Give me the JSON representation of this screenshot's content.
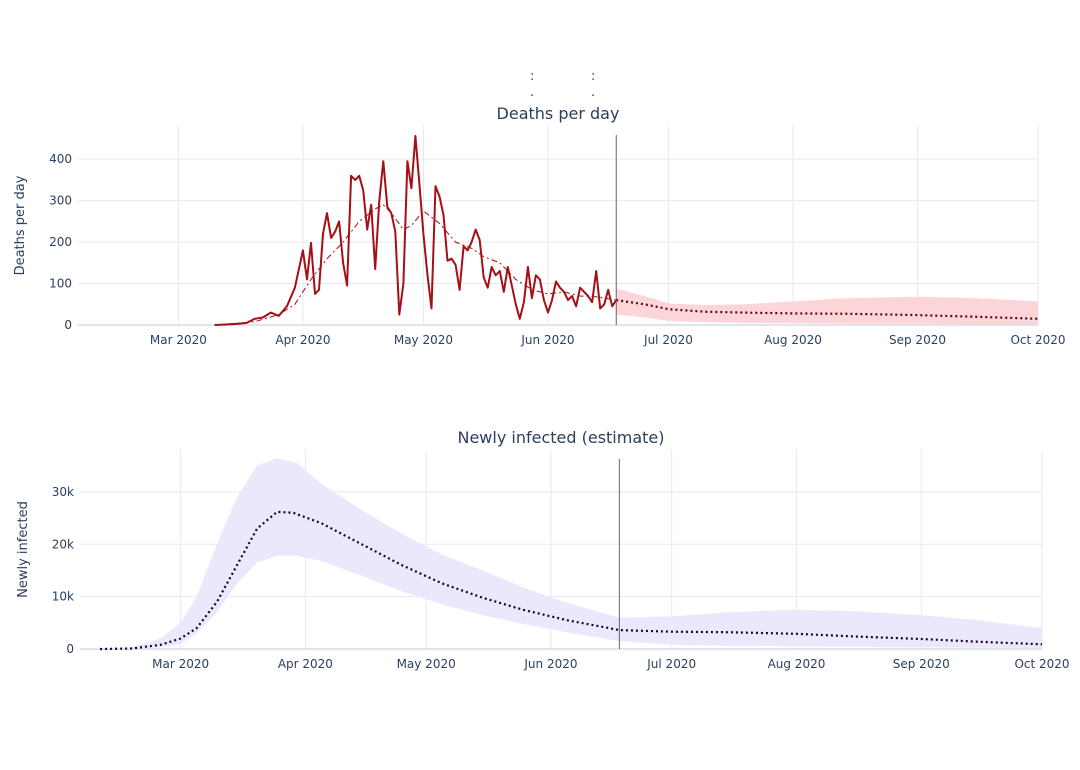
{
  "chart_data": [
    {
      "type": "line",
      "title": "Deaths per day",
      "ylabel": "Deaths per day",
      "xlabel": "",
      "ylim": [
        0,
        480
      ],
      "xlim": [
        "2020-02-05",
        "2020-10-01"
      ],
      "x_ticks": [
        "2020-03-01",
        "2020-04-01",
        "2020-05-01",
        "2020-06-01",
        "2020-07-01",
        "2020-08-01",
        "2020-09-01",
        "2020-10-01"
      ],
      "x_tick_labels": [
        "Mar 2020",
        "Apr 2020",
        "May 2020",
        "Jun 2020",
        "Jul 2020",
        "Aug 2020",
        "Sep 2020",
        "Oct 2020"
      ],
      "y_ticks": [
        0,
        100,
        200,
        300,
        400
      ],
      "y_tick_labels": [
        "0",
        "100",
        "200",
        "300",
        "400"
      ],
      "grid": true,
      "vline_date": "2020-06-18",
      "series": [
        {
          "style": "solid",
          "color": "#a50f15",
          "points": [
            [
              "2020-03-10",
              0
            ],
            [
              "2020-03-12",
              1
            ],
            [
              "2020-03-14",
              2
            ],
            [
              "2020-03-16",
              3
            ],
            [
              "2020-03-18",
              5
            ],
            [
              "2020-03-20",
              15
            ],
            [
              "2020-03-22",
              18
            ],
            [
              "2020-03-24",
              30
            ],
            [
              "2020-03-26",
              22
            ],
            [
              "2020-03-28",
              45
            ],
            [
              "2020-03-30",
              90
            ],
            [
              "2020-04-01",
              180
            ],
            [
              "2020-04-02",
              110
            ],
            [
              "2020-04-03",
              198
            ],
            [
              "2020-04-04",
              75
            ],
            [
              "2020-04-05",
              85
            ],
            [
              "2020-04-06",
              220
            ],
            [
              "2020-04-07",
              270
            ],
            [
              "2020-04-08",
              210
            ],
            [
              "2020-04-09",
              225
            ],
            [
              "2020-04-10",
              250
            ],
            [
              "2020-04-11",
              150
            ],
            [
              "2020-04-12",
              95
            ],
            [
              "2020-04-13",
              360
            ],
            [
              "2020-04-14",
              350
            ],
            [
              "2020-04-15",
              360
            ],
            [
              "2020-04-16",
              325
            ],
            [
              "2020-04-17",
              230
            ],
            [
              "2020-04-18",
              290
            ],
            [
              "2020-04-19",
              135
            ],
            [
              "2020-04-20",
              300
            ],
            [
              "2020-04-21",
              395
            ],
            [
              "2020-04-22",
              285
            ],
            [
              "2020-04-23",
              270
            ],
            [
              "2020-04-24",
              225
            ],
            [
              "2020-04-25",
              25
            ],
            [
              "2020-04-26",
              100
            ],
            [
              "2020-04-27",
              395
            ],
            [
              "2020-04-28",
              330
            ],
            [
              "2020-04-29",
              456
            ],
            [
              "2020-04-30",
              340
            ],
            [
              "2020-05-01",
              220
            ],
            [
              "2020-05-02",
              120
            ],
            [
              "2020-05-03",
              40
            ],
            [
              "2020-05-04",
              335
            ],
            [
              "2020-05-05",
              310
            ],
            [
              "2020-05-06",
              265
            ],
            [
              "2020-05-07",
              155
            ],
            [
              "2020-05-08",
              160
            ],
            [
              "2020-05-09",
              145
            ],
            [
              "2020-05-10",
              85
            ],
            [
              "2020-05-11",
              190
            ],
            [
              "2020-05-12",
              180
            ],
            [
              "2020-05-13",
              200
            ],
            [
              "2020-05-14",
              230
            ],
            [
              "2020-05-15",
              205
            ],
            [
              "2020-05-16",
              115
            ],
            [
              "2020-05-17",
              90
            ],
            [
              "2020-05-18",
              140
            ],
            [
              "2020-05-19",
              120
            ],
            [
              "2020-05-20",
              130
            ],
            [
              "2020-05-21",
              80
            ],
            [
              "2020-05-22",
              140
            ],
            [
              "2020-05-23",
              95
            ],
            [
              "2020-05-24",
              50
            ],
            [
              "2020-05-25",
              15
            ],
            [
              "2020-05-26",
              55
            ],
            [
              "2020-05-27",
              140
            ],
            [
              "2020-05-28",
              65
            ],
            [
              "2020-05-29",
              120
            ],
            [
              "2020-05-30",
              110
            ],
            [
              "2020-05-31",
              60
            ],
            [
              "2020-06-01",
              30
            ],
            [
              "2020-06-02",
              60
            ],
            [
              "2020-06-03",
              105
            ],
            [
              "2020-06-04",
              90
            ],
            [
              "2020-06-05",
              80
            ],
            [
              "2020-06-06",
              60
            ],
            [
              "2020-06-07",
              70
            ],
            [
              "2020-06-08",
              45
            ],
            [
              "2020-06-09",
              90
            ],
            [
              "2020-06-10",
              80
            ],
            [
              "2020-06-11",
              70
            ],
            [
              "2020-06-12",
              55
            ],
            [
              "2020-06-13",
              130
            ],
            [
              "2020-06-14",
              40
            ],
            [
              "2020-06-15",
              50
            ],
            [
              "2020-06-16",
              85
            ],
            [
              "2020-06-17",
              45
            ],
            [
              "2020-06-18",
              60
            ]
          ]
        },
        {
          "style": "dashdot",
          "color": "#a50f15",
          "points": [
            [
              "2020-03-10",
              0
            ],
            [
              "2020-03-20",
              8
            ],
            [
              "2020-03-26",
              25
            ],
            [
              "2020-03-30",
              50
            ],
            [
              "2020-04-03",
              110
            ],
            [
              "2020-04-07",
              160
            ],
            [
              "2020-04-11",
              200
            ],
            [
              "2020-04-15",
              250
            ],
            [
              "2020-04-19",
              280
            ],
            [
              "2020-04-21",
              290
            ],
            [
              "2020-04-23",
              270
            ],
            [
              "2020-04-26",
              230
            ],
            [
              "2020-04-28",
              240
            ],
            [
              "2020-05-01",
              275
            ],
            [
              "2020-05-05",
              245
            ],
            [
              "2020-05-09",
              200
            ],
            [
              "2020-05-13",
              185
            ],
            [
              "2020-05-16",
              165
            ],
            [
              "2020-05-20",
              150
            ],
            [
              "2020-05-24",
              110
            ],
            [
              "2020-05-28",
              85
            ],
            [
              "2020-06-01",
              75
            ],
            [
              "2020-06-05",
              80
            ],
            [
              "2020-06-09",
              70
            ],
            [
              "2020-06-13",
              68
            ],
            [
              "2020-06-18",
              60
            ]
          ]
        },
        {
          "style": "dotted",
          "color": "#67000d",
          "points": [
            [
              "2020-06-18",
              60
            ],
            [
              "2020-06-25",
              50
            ],
            [
              "2020-07-01",
              38
            ],
            [
              "2020-07-10",
              32
            ],
            [
              "2020-07-20",
              30
            ],
            [
              "2020-08-01",
              28
            ],
            [
              "2020-08-15",
              27
            ],
            [
              "2020-09-01",
              24
            ],
            [
              "2020-09-15",
              20
            ],
            [
              "2020-10-01",
              15
            ]
          ]
        }
      ],
      "band": {
        "color": "#fcd5d9",
        "upper": [
          [
            "2020-06-18",
            88
          ],
          [
            "2020-06-25",
            70
          ],
          [
            "2020-07-01",
            52
          ],
          [
            "2020-07-10",
            48
          ],
          [
            "2020-07-20",
            50
          ],
          [
            "2020-08-01",
            57
          ],
          [
            "2020-08-15",
            65
          ],
          [
            "2020-09-01",
            68
          ],
          [
            "2020-09-15",
            65
          ],
          [
            "2020-10-01",
            57
          ]
        ],
        "lower": [
          [
            "2020-06-18",
            25
          ],
          [
            "2020-06-25",
            18
          ],
          [
            "2020-07-01",
            10
          ],
          [
            "2020-07-10",
            7
          ],
          [
            "2020-07-20",
            5
          ],
          [
            "2020-08-01",
            4
          ],
          [
            "2020-08-15",
            3
          ],
          [
            "2020-09-01",
            3
          ],
          [
            "2020-09-15",
            2
          ],
          [
            "2020-10-01",
            2
          ]
        ]
      }
    },
    {
      "type": "line",
      "title": "Newly infected (estimate)",
      "ylabel": "Newly infected",
      "xlabel": "",
      "ylim": [
        0,
        38000
      ],
      "xlim": [
        "2020-02-05",
        "2020-10-01"
      ],
      "x_ticks": [
        "2020-03-01",
        "2020-04-01",
        "2020-05-01",
        "2020-06-01",
        "2020-07-01",
        "2020-08-01",
        "2020-09-01",
        "2020-10-01"
      ],
      "x_tick_labels": [
        "Mar 2020",
        "Apr 2020",
        "May 2020",
        "Jun 2020",
        "Jul 2020",
        "Aug 2020",
        "Sep 2020",
        "Oct 2020"
      ],
      "y_ticks": [
        0,
        10000,
        20000,
        30000
      ],
      "y_tick_labels": [
        "0",
        "10k",
        "20k",
        "30k"
      ],
      "grid": true,
      "vline_date": "2020-06-18",
      "series": [
        {
          "style": "dotted",
          "color": "#14002a",
          "points": [
            [
              "2020-02-10",
              0
            ],
            [
              "2020-02-18",
              100
            ],
            [
              "2020-02-25",
              800
            ],
            [
              "2020-03-01",
              2000
            ],
            [
              "2020-03-05",
              4000
            ],
            [
              "2020-03-10",
              9000
            ],
            [
              "2020-03-15",
              16000
            ],
            [
              "2020-03-20",
              23000
            ],
            [
              "2020-03-25",
              26200
            ],
            [
              "2020-03-29",
              26000
            ],
            [
              "2020-04-05",
              24000
            ],
            [
              "2020-04-15",
              20000
            ],
            [
              "2020-04-25",
              16000
            ],
            [
              "2020-05-05",
              12500
            ],
            [
              "2020-05-15",
              9800
            ],
            [
              "2020-05-25",
              7500
            ],
            [
              "2020-06-05",
              5500
            ],
            [
              "2020-06-18",
              3600
            ],
            [
              "2020-07-01",
              3300
            ],
            [
              "2020-07-15",
              3200
            ],
            [
              "2020-08-01",
              2900
            ],
            [
              "2020-08-15",
              2400
            ],
            [
              "2020-09-01",
              1900
            ],
            [
              "2020-09-15",
              1400
            ],
            [
              "2020-10-01",
              900
            ]
          ]
        }
      ],
      "band": {
        "color": "#ebe8fc",
        "upper": [
          [
            "2020-02-10",
            0
          ],
          [
            "2020-02-18",
            300
          ],
          [
            "2020-02-25",
            2000
          ],
          [
            "2020-03-01",
            5000
          ],
          [
            "2020-03-05",
            10000
          ],
          [
            "2020-03-10",
            20000
          ],
          [
            "2020-03-15",
            29000
          ],
          [
            "2020-03-20",
            35000
          ],
          [
            "2020-03-25",
            36500
          ],
          [
            "2020-03-30",
            35500
          ],
          [
            "2020-04-05",
            31500
          ],
          [
            "2020-04-15",
            26500
          ],
          [
            "2020-04-25",
            22000
          ],
          [
            "2020-05-05",
            18000
          ],
          [
            "2020-05-15",
            15000
          ],
          [
            "2020-05-25",
            11800
          ],
          [
            "2020-06-05",
            8800
          ],
          [
            "2020-06-18",
            6000
          ],
          [
            "2020-07-01",
            6200
          ],
          [
            "2020-07-15",
            7000
          ],
          [
            "2020-08-01",
            7500
          ],
          [
            "2020-08-15",
            7200
          ],
          [
            "2020-09-01",
            6500
          ],
          [
            "2020-09-15",
            5500
          ],
          [
            "2020-10-01",
            4000
          ]
        ],
        "lower": [
          [
            "2020-02-10",
            0
          ],
          [
            "2020-02-18",
            50
          ],
          [
            "2020-02-25",
            300
          ],
          [
            "2020-03-01",
            1000
          ],
          [
            "2020-03-05",
            3000
          ],
          [
            "2020-03-10",
            7000
          ],
          [
            "2020-03-15",
            12500
          ],
          [
            "2020-03-20",
            16500
          ],
          [
            "2020-03-25",
            17800
          ],
          [
            "2020-03-30",
            17800
          ],
          [
            "2020-04-05",
            16800
          ],
          [
            "2020-04-15",
            14000
          ],
          [
            "2020-04-25",
            11000
          ],
          [
            "2020-05-05",
            8500
          ],
          [
            "2020-05-15",
            6500
          ],
          [
            "2020-05-25",
            4800
          ],
          [
            "2020-06-05",
            3200
          ],
          [
            "2020-06-18",
            1500
          ],
          [
            "2020-07-01",
            800
          ],
          [
            "2020-07-15",
            600
          ],
          [
            "2020-08-01",
            500
          ],
          [
            "2020-08-15",
            400
          ],
          [
            "2020-09-01",
            300
          ],
          [
            "2020-09-15",
            250
          ],
          [
            "2020-10-01",
            200
          ]
        ]
      }
    }
  ]
}
